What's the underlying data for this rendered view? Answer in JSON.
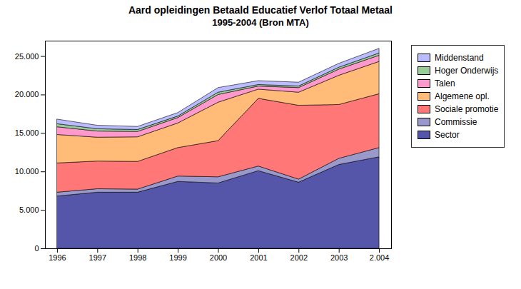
{
  "chart_data": {
    "type": "area",
    "stacked": true,
    "title": "Aard opleidingen Betaald Educatief Verlof Totaal Metaal",
    "subtitle": "1995-2004 (Bron MTA)",
    "x": [
      1996,
      1997,
      1998,
      1999,
      2000,
      2001,
      2002,
      2003,
      2004
    ],
    "xlim": [
      1995.7,
      2004.3
    ],
    "xticks": [
      1996,
      1997,
      1998,
      1999,
      2000,
      2001,
      2002,
      2003,
      {
        "value": 2004,
        "label": "2.004"
      }
    ],
    "ylim": [
      0,
      27000
    ],
    "yticks": [
      0,
      {
        "value": 5000,
        "label": "5.000"
      },
      {
        "value": 10000,
        "label": "10.000"
      },
      {
        "value": 15000,
        "label": "15.000"
      },
      {
        "value": 20000,
        "label": "20.000"
      },
      {
        "value": 25000,
        "label": "25.000"
      }
    ],
    "grid": false,
    "legend": "right",
    "series": [
      {
        "name": "Sector",
        "color": "#5555aa",
        "values": [
          6800,
          7300,
          7300,
          8700,
          8500,
          10100,
          8600,
          10900,
          11900
        ]
      },
      {
        "name": "Commissie",
        "color": "#9999cc",
        "values": [
          500,
          450,
          400,
          700,
          800,
          600,
          400,
          800,
          1200
        ]
      },
      {
        "name": "Sociale promotie",
        "color": "#ff7777",
        "values": [
          3800,
          3600,
          3600,
          3700,
          4700,
          8800,
          9600,
          7000,
          7000
        ]
      },
      {
        "name": "Algemene opl.",
        "color": "#ffbb77",
        "values": [
          3700,
          3100,
          3200,
          3200,
          5000,
          1200,
          1700,
          3800,
          4200
        ]
      },
      {
        "name": "Talen",
        "color": "#ff99cc",
        "values": [
          1000,
          800,
          700,
          700,
          1000,
          400,
          600,
          800,
          800
        ]
      },
      {
        "name": "Hoger Onderwijs",
        "color": "#99cc99",
        "values": [
          400,
          300,
          250,
          200,
          300,
          200,
          200,
          250,
          300
        ]
      },
      {
        "name": "Middenstand",
        "color": "#bbbbff",
        "values": [
          600,
          450,
          400,
          450,
          600,
          500,
          500,
          500,
          600
        ]
      }
    ]
  }
}
